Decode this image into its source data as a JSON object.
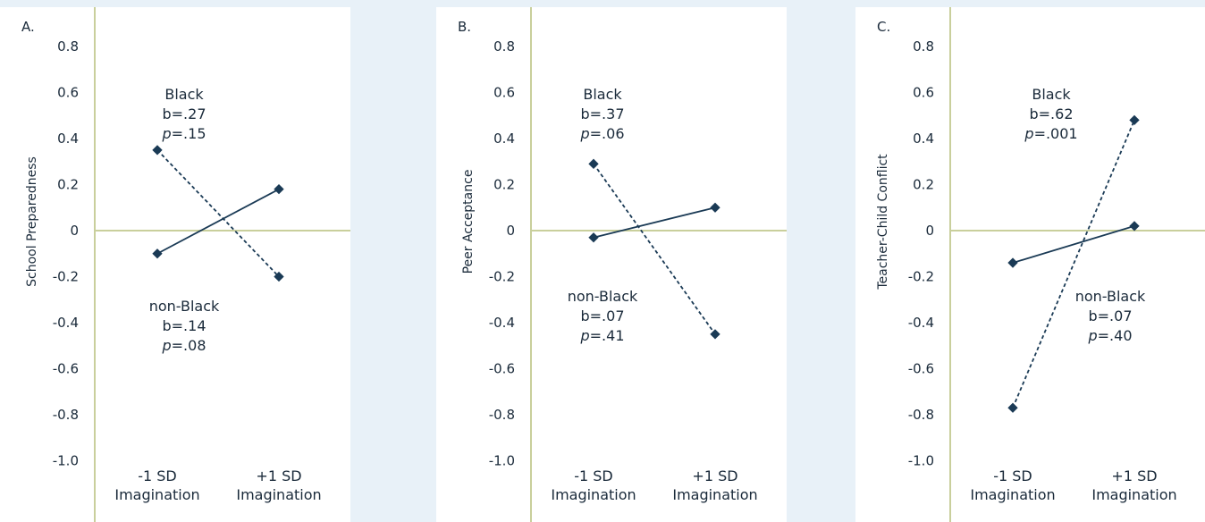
{
  "chart_data": [
    {
      "type": "line",
      "panel_label": "A.",
      "ylabel": "School Preparedness",
      "categories": [
        "-1 SD|Imagination",
        "+1 SD|Imagination"
      ],
      "yticks": [
        "0.8",
        "0.6",
        "0.4",
        "0.2",
        "0",
        "-0.2",
        "-0.4",
        "-0.6",
        "-0.8",
        "-1.0"
      ],
      "ylim": [
        -1.1,
        0.9
      ],
      "series": [
        {
          "name": "Black",
          "style": "dashed",
          "values": [
            0.35,
            -0.2
          ],
          "b": "b=.27",
          "p_prefix": "p",
          "p_value": "=.15"
        },
        {
          "name": "non-Black",
          "style": "solid",
          "values": [
            -0.1,
            0.18
          ],
          "b": "b=.14",
          "p_prefix": "p",
          "p_value": "=.08"
        }
      ]
    },
    {
      "type": "line",
      "panel_label": "B.",
      "ylabel": "Peer Acceptance",
      "categories": [
        "-1 SD|Imagination",
        "+1 SD|Imagination"
      ],
      "yticks": [
        "0.8",
        "0.6",
        "0.4",
        "0.2",
        "0",
        "-0.2",
        "-0.4",
        "-0.6",
        "-0.8",
        "-1.0"
      ],
      "ylim": [
        -1.1,
        0.9
      ],
      "series": [
        {
          "name": "Black",
          "style": "dashed",
          "values": [
            0.29,
            -0.45
          ],
          "b": "b=.37",
          "p_prefix": "p",
          "p_value": "=.06"
        },
        {
          "name": "non-Black",
          "style": "solid",
          "values": [
            -0.03,
            0.1
          ],
          "b": "b=.07",
          "p_prefix": "p",
          "p_value": "=.41"
        }
      ]
    },
    {
      "type": "line",
      "panel_label": "C.",
      "ylabel": "Teacher-Child Conflict",
      "categories": [
        "-1 SD|Imagination",
        "+1 SD|Imagination"
      ],
      "yticks": [
        "0.8",
        "0.6",
        "0.4",
        "0.2",
        "0",
        "-0.2",
        "-0.4",
        "-0.6",
        "-0.8",
        "-1.0"
      ],
      "ylim": [
        -1.1,
        0.9
      ],
      "series": [
        {
          "name": "Black",
          "style": "dashed",
          "values": [
            -0.77,
            0.48
          ],
          "b": "b=.62",
          "p_prefix": "p",
          "p_value": "=.001"
        },
        {
          "name": "non-Black",
          "style": "solid",
          "values": [
            -0.14,
            0.02
          ],
          "b": "b=.07",
          "p_prefix": "p",
          "p_value": "=.40"
        }
      ]
    }
  ],
  "colors": {
    "background": "#e8f1f8",
    "panel": "#ffffff",
    "axis": "#c9cf9c",
    "line": "#1a3a55",
    "text": "#1a2a3a"
  }
}
